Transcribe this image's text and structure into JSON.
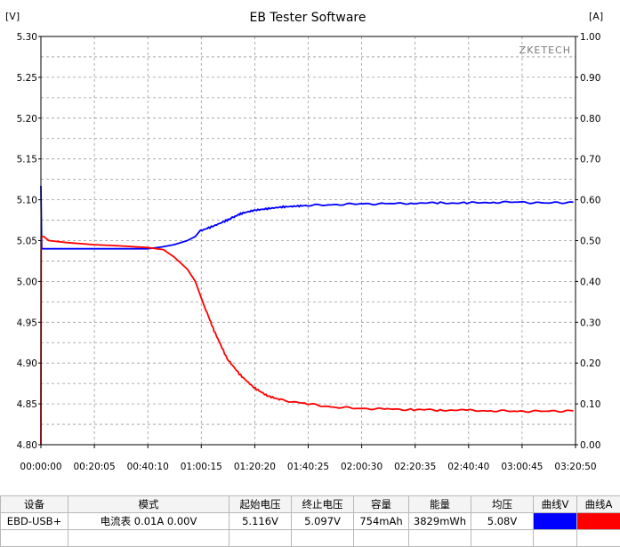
{
  "chart_data": {
    "type": "line",
    "title": "EB Tester Software",
    "watermark": "ZKETECH",
    "left_unit": "[V]",
    "right_unit": "[A]",
    "y_left_lim": [
      4.8,
      5.3
    ],
    "y_right_lim": [
      0.0,
      1.0
    ],
    "y_left_ticks": [
      "5.30",
      "5.25",
      "5.20",
      "5.15",
      "5.10",
      "5.05",
      "5.00",
      "4.95",
      "4.90",
      "4.85",
      "4.80"
    ],
    "y_right_ticks": [
      "1.00",
      "0.90",
      "0.80",
      "0.70",
      "0.60",
      "0.50",
      "0.40",
      "0.30",
      "0.20",
      "0.10",
      "0.00"
    ],
    "x_ticks": [
      "00:00:00",
      "00:20:05",
      "00:40:10",
      "01:00:15",
      "01:20:20",
      "01:40:25",
      "02:00:30",
      "02:20:35",
      "02:40:40",
      "03:00:45",
      "03:20:50"
    ],
    "x_range_minutes": [
      0,
      200.83
    ],
    "grid": true,
    "series": [
      {
        "axis": "left",
        "color": "#0000ff",
        "points": [
          [
            0,
            5.117
          ],
          [
            0.3,
            5.04
          ],
          [
            10,
            5.04
          ],
          [
            20,
            5.04
          ],
          [
            30,
            5.04
          ],
          [
            40,
            5.04
          ],
          [
            45,
            5.042
          ],
          [
            50,
            5.045
          ],
          [
            55,
            5.05
          ],
          [
            58,
            5.055
          ],
          [
            60,
            5.062
          ],
          [
            65,
            5.068
          ],
          [
            70,
            5.075
          ],
          [
            72,
            5.078
          ],
          [
            75,
            5.083
          ],
          [
            80,
            5.087
          ],
          [
            85,
            5.089
          ],
          [
            90,
            5.091
          ],
          [
            95,
            5.092
          ],
          [
            100,
            5.093
          ],
          [
            110,
            5.094
          ],
          [
            120,
            5.095
          ],
          [
            130,
            5.095
          ],
          [
            140,
            5.096
          ],
          [
            150,
            5.096
          ],
          [
            160,
            5.096
          ],
          [
            170,
            5.097
          ],
          [
            180,
            5.097
          ],
          [
            190,
            5.096
          ],
          [
            200,
            5.097
          ]
        ]
      },
      {
        "axis": "right",
        "color": "#ff0000",
        "points": [
          [
            0,
            0.0
          ],
          [
            0.1,
            0.51
          ],
          [
            1,
            0.51
          ],
          [
            3,
            0.5
          ],
          [
            10,
            0.495
          ],
          [
            20,
            0.49
          ],
          [
            30,
            0.487
          ],
          [
            40,
            0.483
          ],
          [
            46,
            0.478
          ],
          [
            50,
            0.46
          ],
          [
            55,
            0.43
          ],
          [
            58,
            0.4
          ],
          [
            62,
            0.33
          ],
          [
            65,
            0.28
          ],
          [
            70,
            0.21
          ],
          [
            75,
            0.17
          ],
          [
            80,
            0.14
          ],
          [
            85,
            0.12
          ],
          [
            90,
            0.11
          ],
          [
            100,
            0.1
          ],
          [
            110,
            0.092
          ],
          [
            120,
            0.089
          ],
          [
            130,
            0.087
          ],
          [
            140,
            0.086
          ],
          [
            150,
            0.085
          ],
          [
            160,
            0.084
          ],
          [
            170,
            0.083
          ],
          [
            180,
            0.082
          ],
          [
            190,
            0.082
          ],
          [
            200,
            0.083
          ]
        ]
      }
    ]
  },
  "table": {
    "headers": [
      "设备",
      "模式",
      "起始电压",
      "终止电压",
      "容量",
      "能量",
      "均压",
      "曲线V",
      "曲线A"
    ],
    "row": {
      "device": "EBD-USB+",
      "mode": "电流表  0.01A  0.00V",
      "start_voltage": "5.116V",
      "end_voltage": "5.097V",
      "capacity": "754mAh",
      "energy": "3829mWh",
      "avg_voltage": "5.08V"
    },
    "swatch_v_color": "#0000ff",
    "swatch_a_color": "#ff0000"
  }
}
